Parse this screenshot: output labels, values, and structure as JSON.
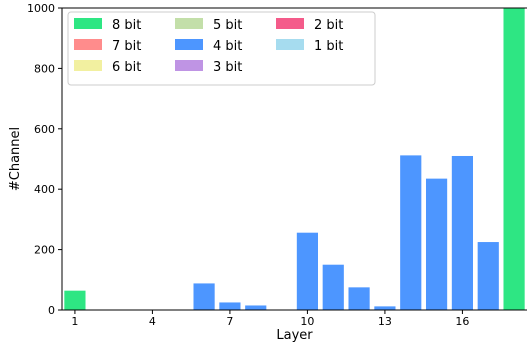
{
  "chart_data": {
    "type": "bar",
    "stacked": true,
    "xlabel": "Layer",
    "ylabel": "#Channel",
    "ylim": [
      0,
      1000
    ],
    "y_ticks": [
      0,
      200,
      400,
      600,
      800,
      1000
    ],
    "x_ticks": [
      1,
      4,
      7,
      10,
      13,
      16
    ],
    "categories": [
      1,
      2,
      3,
      4,
      5,
      6,
      7,
      8,
      9,
      10,
      11,
      12,
      13,
      14,
      15,
      16,
      17,
      18
    ],
    "grid": false,
    "legend_position": "top-left",
    "legend": [
      "8 bit",
      "7 bit",
      "6 bit",
      "5 bit",
      "4 bit",
      "3 bit",
      "2 bit",
      "1 bit"
    ],
    "series": [
      {
        "name": "1 bit",
        "color": "#a6dcef",
        "values": [
          0,
          0,
          0,
          0,
          0,
          0,
          0,
          0,
          0,
          0,
          0,
          0,
          0,
          0,
          0,
          0,
          0,
          0
        ]
      },
      {
        "name": "2 bit",
        "color": "#f45b8a",
        "values": [
          0,
          0,
          0,
          0,
          0,
          0,
          0,
          0,
          0,
          0,
          0,
          0,
          0,
          0,
          0,
          0,
          0,
          0
        ]
      },
      {
        "name": "3 bit",
        "color": "#bf94e4",
        "values": [
          0,
          0,
          0,
          0,
          0,
          0,
          0,
          0,
          0,
          0,
          0,
          0,
          0,
          0,
          0,
          0,
          0,
          0
        ]
      },
      {
        "name": "4 bit",
        "color": "#4d96ff",
        "values": [
          0,
          0,
          0,
          0,
          0,
          88,
          25,
          15,
          0,
          256,
          150,
          75,
          12,
          512,
          435,
          510,
          225,
          0
        ]
      },
      {
        "name": "5 bit",
        "color": "#c3dfa9",
        "values": [
          0,
          0,
          0,
          0,
          0,
          0,
          0,
          0,
          0,
          0,
          0,
          0,
          0,
          0,
          0,
          0,
          0,
          0
        ]
      },
      {
        "name": "6 bit",
        "color": "#f2f0a0",
        "values": [
          0,
          0,
          0,
          0,
          0,
          0,
          0,
          0,
          0,
          0,
          0,
          0,
          0,
          0,
          0,
          0,
          0,
          0
        ]
      },
      {
        "name": "7 bit",
        "color": "#ff8c8c",
        "values": [
          0,
          0,
          0,
          0,
          0,
          0,
          0,
          0,
          0,
          0,
          0,
          0,
          0,
          0,
          0,
          0,
          0,
          0
        ]
      },
      {
        "name": "8 bit",
        "color": "#2ee683",
        "values": [
          64,
          0,
          0,
          0,
          0,
          0,
          0,
          0,
          0,
          0,
          0,
          0,
          0,
          0,
          0,
          0,
          0,
          1000
        ]
      }
    ]
  }
}
